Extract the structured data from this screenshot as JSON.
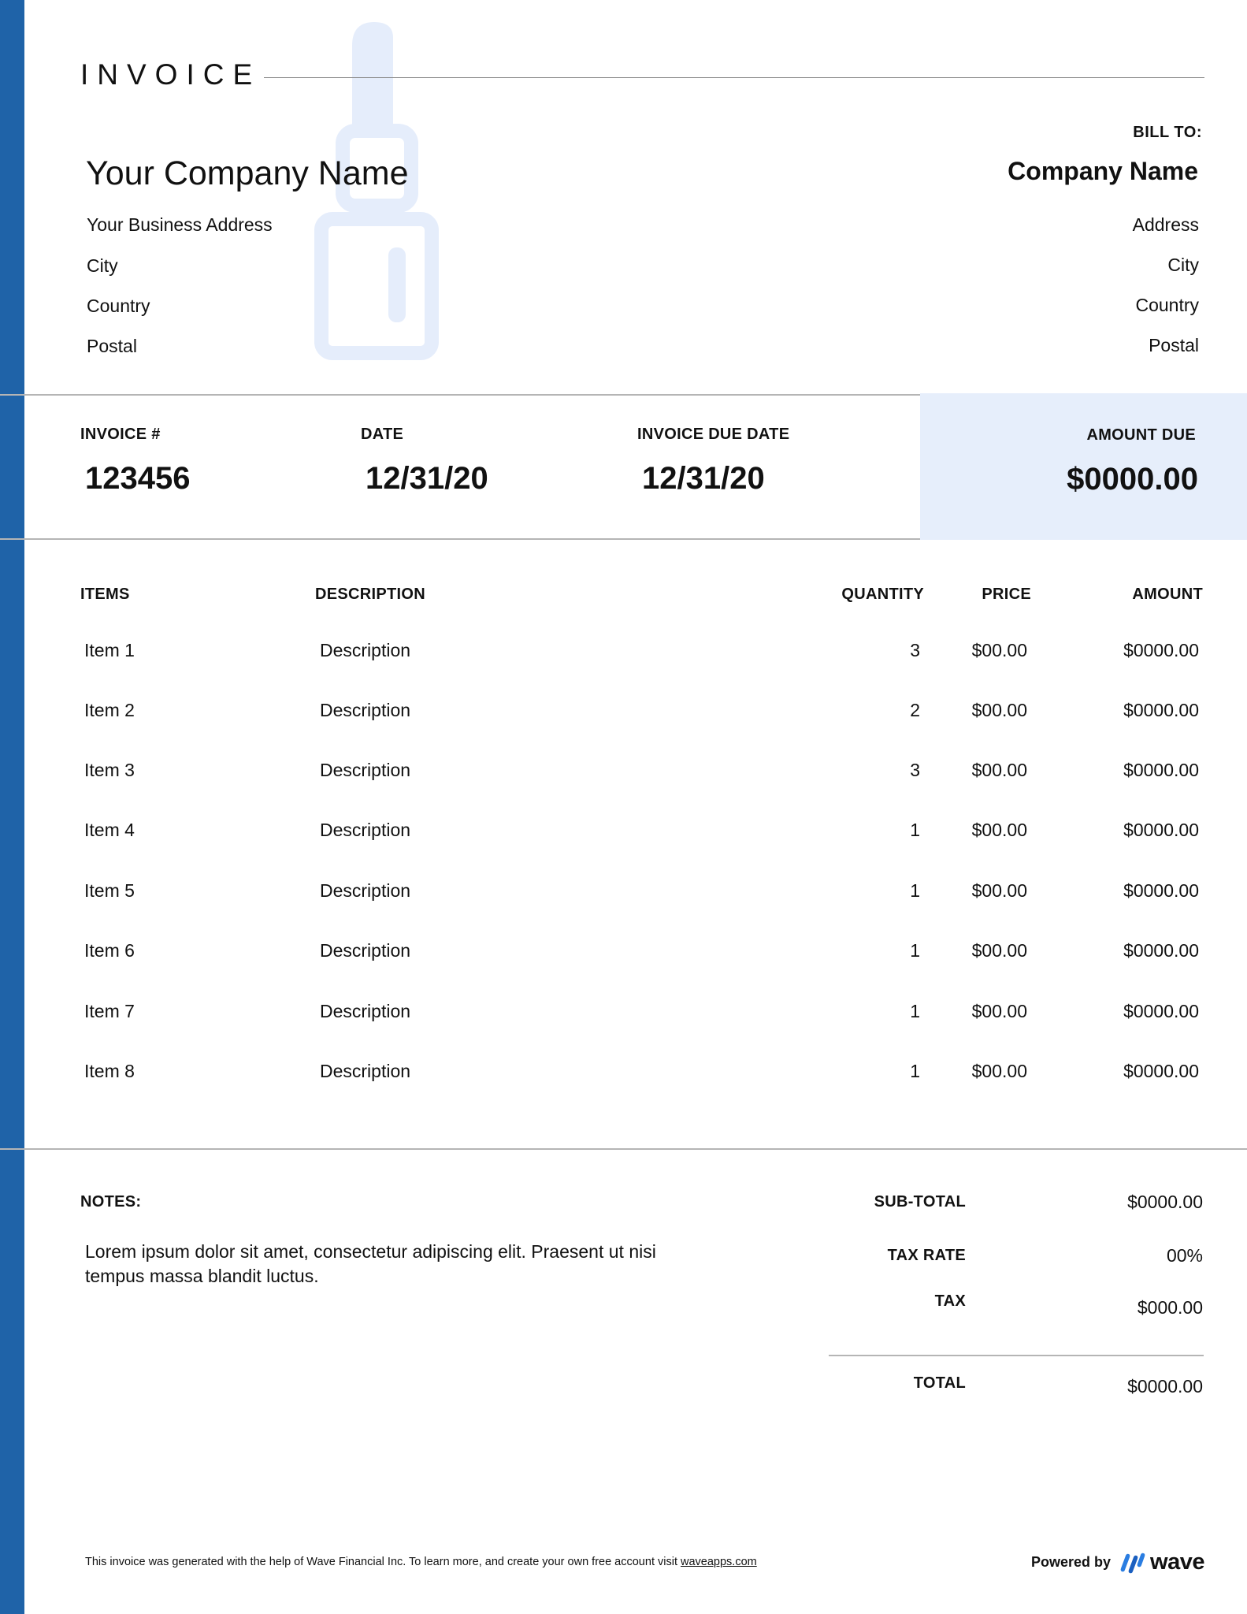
{
  "brand": {
    "accent": "#1f63a8",
    "highlight_bg": "#e6eefb",
    "watermark": "#e5edfb"
  },
  "document": {
    "title": "INVOICE"
  },
  "sender": {
    "name": "Your Company Name",
    "address": "Your Business Address",
    "city": "City",
    "country": "Country",
    "postal": "Postal"
  },
  "bill_to": {
    "label": "BILL TO:",
    "name": "Company Name",
    "address": "Address",
    "city": "City",
    "country": "Country",
    "postal": "Postal"
  },
  "meta": {
    "invoice_label": "INVOICE #",
    "invoice_number": "123456",
    "date_label": "DATE",
    "date": "12/31/20",
    "due_label": "INVOICE DUE DATE",
    "due_date": "12/31/20",
    "amount_due_label": "AMOUNT DUE",
    "amount_due": "$0000.00"
  },
  "table": {
    "headers": {
      "items": "ITEMS",
      "description": "DESCRIPTION",
      "quantity": "QUANTITY",
      "price": "PRICE",
      "amount": "AMOUNT"
    },
    "rows": [
      {
        "item": "Item 1",
        "description": "Description",
        "quantity": "3",
        "price": "$00.00",
        "amount": "$0000.00"
      },
      {
        "item": "Item 2",
        "description": "Description",
        "quantity": "2",
        "price": "$00.00",
        "amount": "$0000.00"
      },
      {
        "item": "Item 3",
        "description": "Description",
        "quantity": "3",
        "price": "$00.00",
        "amount": "$0000.00"
      },
      {
        "item": "Item 4",
        "description": "Description",
        "quantity": "1",
        "price": "$00.00",
        "amount": "$0000.00"
      },
      {
        "item": "Item 5",
        "description": "Description",
        "quantity": "1",
        "price": "$00.00",
        "amount": "$0000.00"
      },
      {
        "item": "Item 6",
        "description": "Description",
        "quantity": "1",
        "price": "$00.00",
        "amount": "$0000.00"
      },
      {
        "item": "Item 7",
        "description": "Description",
        "quantity": "1",
        "price": "$00.00",
        "amount": "$0000.00"
      },
      {
        "item": "Item 8",
        "description": "Description",
        "quantity": "1",
        "price": "$00.00",
        "amount": "$0000.00"
      }
    ]
  },
  "notes": {
    "label": "NOTES:",
    "text": "Lorem ipsum dolor sit amet, consectetur adipiscing elit. Praesent ut nisi tempus massa blandit luctus."
  },
  "summary": {
    "subtotal_label": "SUB-TOTAL",
    "subtotal": "$0000.00",
    "tax_rate_label": "TAX RATE",
    "tax_rate": "00%",
    "tax_label": "TAX",
    "tax": "$000.00",
    "total_label": "TOTAL",
    "total": "$0000.00"
  },
  "footer": {
    "text": "This invoice was generated with the help of Wave Financial Inc. To learn more, and create your own free account visit",
    "link": "waveapps.com",
    "powered_by": "Powered by",
    "logo_word": "wave",
    "logo_icon": "wave-logo-icon"
  }
}
